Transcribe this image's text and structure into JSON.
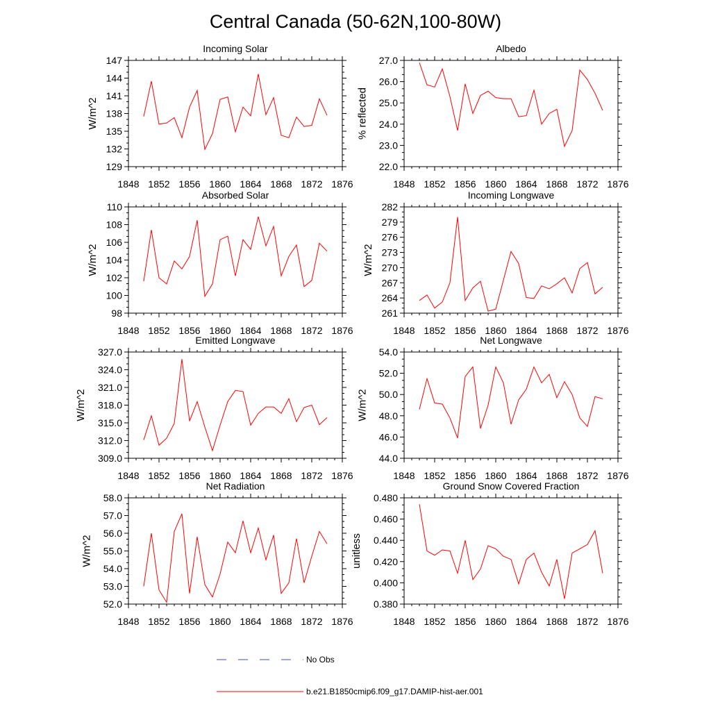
{
  "figure": {
    "title": "Central Canada (50-62N,100-80W)",
    "legend": [
      {
        "label": "No Obs",
        "color": "#3b4cc0",
        "style": "dashed"
      },
      {
        "label": "b.e21.B1850cmip6.f09_g17.DAMIP-hist-aer.001",
        "color": "#ff0000",
        "style": "solid"
      }
    ]
  },
  "chart_data": [
    {
      "type": "line",
      "title": "Incoming Solar",
      "ylabel": "W/m^2",
      "xlim": [
        1848,
        1876
      ],
      "ylim": [
        129,
        147
      ],
      "xticks": [
        "1848",
        "1852",
        "1856",
        "1860",
        "1864",
        "1868",
        "1872",
        "1876"
      ],
      "yticks": [
        "129",
        "132",
        "135",
        "138",
        "141",
        "144",
        "147"
      ],
      "x": [
        1850,
        1851,
        1852,
        1853,
        1854,
        1855,
        1856,
        1857,
        1858,
        1859,
        1860,
        1861,
        1862,
        1863,
        1864,
        1865,
        1866,
        1867,
        1868,
        1869,
        1870,
        1871,
        1872,
        1873,
        1874
      ],
      "series": [
        {
          "color": "#ff0000",
          "values": [
            137.5,
            143.5,
            136.2,
            136.4,
            137.3,
            133.9,
            139.1,
            141.9,
            131.9,
            134.6,
            140.4,
            140.8,
            134.9,
            139.1,
            137.6,
            144.7,
            137.8,
            140.7,
            134.3,
            133.9,
            137.4,
            135.8,
            136.0,
            140.5,
            137.7
          ]
        }
      ]
    },
    {
      "type": "line",
      "title": "Albedo",
      "ylabel": "% reflected",
      "xlim": [
        1848,
        1876
      ],
      "ylim": [
        22.0,
        27.0
      ],
      "xticks": [
        "1848",
        "1852",
        "1856",
        "1860",
        "1864",
        "1868",
        "1872",
        "1876"
      ],
      "yticks": [
        "22.0",
        "23.0",
        "24.0",
        "25.0",
        "26.0",
        "27.0"
      ],
      "x": [
        1850,
        1851,
        1852,
        1853,
        1854,
        1855,
        1856,
        1857,
        1858,
        1859,
        1860,
        1861,
        1862,
        1863,
        1864,
        1865,
        1866,
        1867,
        1868,
        1869,
        1870,
        1871,
        1872,
        1873,
        1874
      ],
      "series": [
        {
          "color": "#ff0000",
          "values": [
            26.9,
            25.85,
            25.75,
            26.6,
            25.3,
            23.7,
            25.9,
            24.5,
            25.35,
            25.55,
            25.25,
            25.2,
            25.2,
            24.35,
            24.4,
            25.6,
            24.0,
            24.5,
            24.7,
            22.95,
            23.7,
            26.55,
            26.1,
            25.45,
            24.65
          ]
        }
      ]
    },
    {
      "type": "line",
      "title": "Absorbed Solar",
      "ylabel": "W/m^2",
      "xlim": [
        1848,
        1876
      ],
      "ylim": [
        98,
        110
      ],
      "xticks": [
        "1848",
        "1852",
        "1856",
        "1860",
        "1864",
        "1868",
        "1872",
        "1876"
      ],
      "yticks": [
        "98",
        "100",
        "102",
        "104",
        "106",
        "108",
        "110"
      ],
      "x": [
        1850,
        1851,
        1852,
        1853,
        1854,
        1855,
        1856,
        1857,
        1858,
        1859,
        1860,
        1861,
        1862,
        1863,
        1864,
        1865,
        1866,
        1867,
        1868,
        1869,
        1870,
        1871,
        1872,
        1873,
        1874
      ],
      "series": [
        {
          "color": "#ff0000",
          "values": [
            101.6,
            107.4,
            102.0,
            101.3,
            103.9,
            103.0,
            104.4,
            108.5,
            99.9,
            101.3,
            106.3,
            106.7,
            102.2,
            106.3,
            105.2,
            108.9,
            105.6,
            107.8,
            102.2,
            104.4,
            105.7,
            101.0,
            101.7,
            105.9,
            105.0
          ]
        }
      ]
    },
    {
      "type": "line",
      "title": "Incoming Longwave",
      "ylabel": "W/m^2",
      "xlim": [
        1848,
        1876
      ],
      "ylim": [
        261,
        282
      ],
      "xticks": [
        "1848",
        "1852",
        "1856",
        "1860",
        "1864",
        "1868",
        "1872",
        "1876"
      ],
      "yticks": [
        "261",
        "264",
        "267",
        "270",
        "273",
        "276",
        "279",
        "282"
      ],
      "x": [
        1850,
        1851,
        1852,
        1853,
        1854,
        1855,
        1856,
        1857,
        1858,
        1859,
        1860,
        1861,
        1862,
        1863,
        1864,
        1865,
        1866,
        1867,
        1868,
        1869,
        1870,
        1871,
        1872,
        1873,
        1874
      ],
      "series": [
        {
          "color": "#ff0000",
          "values": [
            263.5,
            264.6,
            262.0,
            263.2,
            267.0,
            280.0,
            263.5,
            266.0,
            267.3,
            261.4,
            261.8,
            267.5,
            273.2,
            270.8,
            264.1,
            263.9,
            266.4,
            265.8,
            266.8,
            268.0,
            265.0,
            269.8,
            271.0,
            264.8,
            266.1
          ]
        }
      ]
    },
    {
      "type": "line",
      "title": "Emitted Longwave",
      "ylabel": "W/m^2",
      "xlim": [
        1848,
        1876
      ],
      "ylim": [
        309.0,
        327.0
      ],
      "xticks": [
        "1848",
        "1852",
        "1856",
        "1860",
        "1864",
        "1868",
        "1872",
        "1876"
      ],
      "yticks": [
        "309.0",
        "312.0",
        "315.0",
        "318.0",
        "321.0",
        "324.0",
        "327.0"
      ],
      "x": [
        1850,
        1851,
        1852,
        1853,
        1854,
        1855,
        1856,
        1857,
        1858,
        1859,
        1860,
        1861,
        1862,
        1863,
        1864,
        1865,
        1866,
        1867,
        1868,
        1869,
        1870,
        1871,
        1872,
        1873,
        1874
      ],
      "series": [
        {
          "color": "#ff0000",
          "values": [
            312.1,
            316.2,
            311.2,
            312.4,
            314.9,
            325.8,
            315.3,
            318.6,
            314.3,
            310.3,
            314.6,
            318.6,
            320.5,
            320.3,
            314.6,
            316.6,
            317.7,
            317.7,
            316.6,
            319.1,
            315.2,
            317.6,
            318.0,
            314.7,
            315.9
          ]
        }
      ]
    },
    {
      "type": "line",
      "title": "Net Longwave",
      "ylabel": "W/m^2",
      "xlim": [
        1848,
        1876
      ],
      "ylim": [
        44.0,
        54.0
      ],
      "xticks": [
        "1848",
        "1852",
        "1856",
        "1860",
        "1864",
        "1868",
        "1872",
        "1876"
      ],
      "yticks": [
        "44.0",
        "46.0",
        "48.0",
        "50.0",
        "52.0",
        "54.0"
      ],
      "x": [
        1850,
        1851,
        1852,
        1853,
        1854,
        1855,
        1856,
        1857,
        1858,
        1859,
        1860,
        1861,
        1862,
        1863,
        1864,
        1865,
        1866,
        1867,
        1868,
        1869,
        1870,
        1871,
        1872,
        1873,
        1874
      ],
      "series": [
        {
          "color": "#ff0000",
          "values": [
            48.6,
            51.5,
            49.2,
            49.1,
            47.8,
            45.9,
            51.7,
            52.6,
            46.8,
            49.0,
            52.6,
            51.1,
            47.2,
            49.5,
            50.5,
            52.6,
            51.1,
            51.9,
            49.7,
            51.2,
            50.0,
            47.8,
            47.0,
            49.8,
            49.6
          ]
        }
      ]
    },
    {
      "type": "line",
      "title": "Net Radiation",
      "ylabel": "W/m^2",
      "xlim": [
        1848,
        1876
      ],
      "ylim": [
        52.0,
        58.0
      ],
      "xticks": [
        "1848",
        "1852",
        "1856",
        "1860",
        "1864",
        "1868",
        "1872",
        "1876"
      ],
      "yticks": [
        "52.0",
        "53.0",
        "54.0",
        "55.0",
        "56.0",
        "57.0",
        "58.0"
      ],
      "x": [
        1850,
        1851,
        1852,
        1853,
        1854,
        1855,
        1856,
        1857,
        1858,
        1859,
        1860,
        1861,
        1862,
        1863,
        1864,
        1865,
        1866,
        1867,
        1868,
        1869,
        1870,
        1871,
        1872,
        1873,
        1874
      ],
      "series": [
        {
          "color": "#ff0000",
          "values": [
            53.0,
            56.0,
            52.8,
            52.1,
            56.1,
            57.1,
            52.6,
            55.8,
            53.1,
            52.4,
            53.7,
            55.5,
            54.9,
            56.7,
            54.9,
            56.3,
            54.5,
            55.9,
            52.6,
            53.2,
            55.7,
            53.2,
            54.7,
            56.1,
            55.4
          ]
        }
      ]
    },
    {
      "type": "line",
      "title": "Ground Snow Covered Fraction",
      "ylabel": "unitless",
      "xlim": [
        1848,
        1876
      ],
      "ylim": [
        0.38,
        0.48
      ],
      "xticks": [
        "1848",
        "1852",
        "1856",
        "1860",
        "1864",
        "1868",
        "1872",
        "1876"
      ],
      "yticks": [
        "0.380",
        "0.400",
        "0.420",
        "0.440",
        "0.460",
        "0.480"
      ],
      "x": [
        1850,
        1851,
        1852,
        1853,
        1854,
        1855,
        1856,
        1857,
        1858,
        1859,
        1860,
        1861,
        1862,
        1863,
        1864,
        1865,
        1866,
        1867,
        1868,
        1869,
        1870,
        1871,
        1872,
        1873,
        1874
      ],
      "series": [
        {
          "color": "#ff0000",
          "values": [
            0.474,
            0.43,
            0.426,
            0.431,
            0.43,
            0.409,
            0.44,
            0.403,
            0.413,
            0.435,
            0.432,
            0.425,
            0.422,
            0.399,
            0.422,
            0.428,
            0.41,
            0.397,
            0.422,
            0.385,
            0.428,
            0.432,
            0.436,
            0.449,
            0.409
          ]
        }
      ]
    }
  ]
}
